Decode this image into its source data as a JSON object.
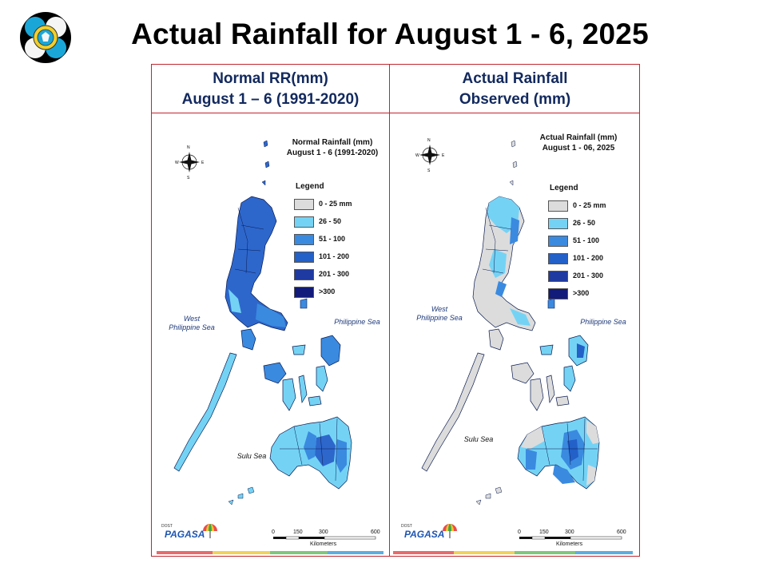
{
  "page": {
    "title": "Actual Rainfall for August 1 - 6, 2025"
  },
  "colors": {
    "frame": "#c0262d",
    "header_text": "#12295e",
    "c0_25": "#dcdcdc",
    "c26_50": "#74d3f5",
    "c51_100": "#3a8ae0",
    "c101_200": "#2360c8",
    "c201_300": "#1f3aa0",
    "c300": "#121a7a",
    "strip": [
      "#e96a6a",
      "#f2d15a",
      "#7ec77a",
      "#5aaee0"
    ]
  },
  "panels": {
    "left": {
      "header_line1": "Normal RR(mm)",
      "header_line2": "August 1 – 6 (1991-2020)",
      "map_title_line1": "Normal Rainfall (mm)",
      "map_title_line2": "August 1 - 6 (1991-2020)"
    },
    "right": {
      "header_line1": "Actual Rainfall",
      "header_line2": "Observed (mm)",
      "map_title_line1": "Actual Rainfall (mm)",
      "map_title_line2": "August 1 - 06, 2025"
    }
  },
  "legend": {
    "title": "Legend",
    "items": [
      {
        "label": "0 - 25 mm",
        "color": "#dcdcdc"
      },
      {
        "label": "26 - 50",
        "color": "#74d3f5"
      },
      {
        "label": "51 - 100",
        "color": "#3a8ae0"
      },
      {
        "label": "101 - 200",
        "color": "#2360c8"
      },
      {
        "label": "201 - 300",
        "color": "#1f3aa0"
      },
      {
        "label": ">300",
        "color": "#121a7a"
      }
    ]
  },
  "map_labels": {
    "west_sea_line1": "West",
    "west_sea_line2": "Philippine Sea",
    "philippine_sea": "Philippine Sea",
    "sulu_sea": "Sulu Sea",
    "compass": {
      "n": "N",
      "s": "S",
      "e": "E",
      "w": "W"
    },
    "scale_ticks": [
      "0",
      "150",
      "300",
      "600"
    ],
    "scale_unit": "Kilometers",
    "branding_small": "DOST",
    "branding": "PAGASA"
  }
}
